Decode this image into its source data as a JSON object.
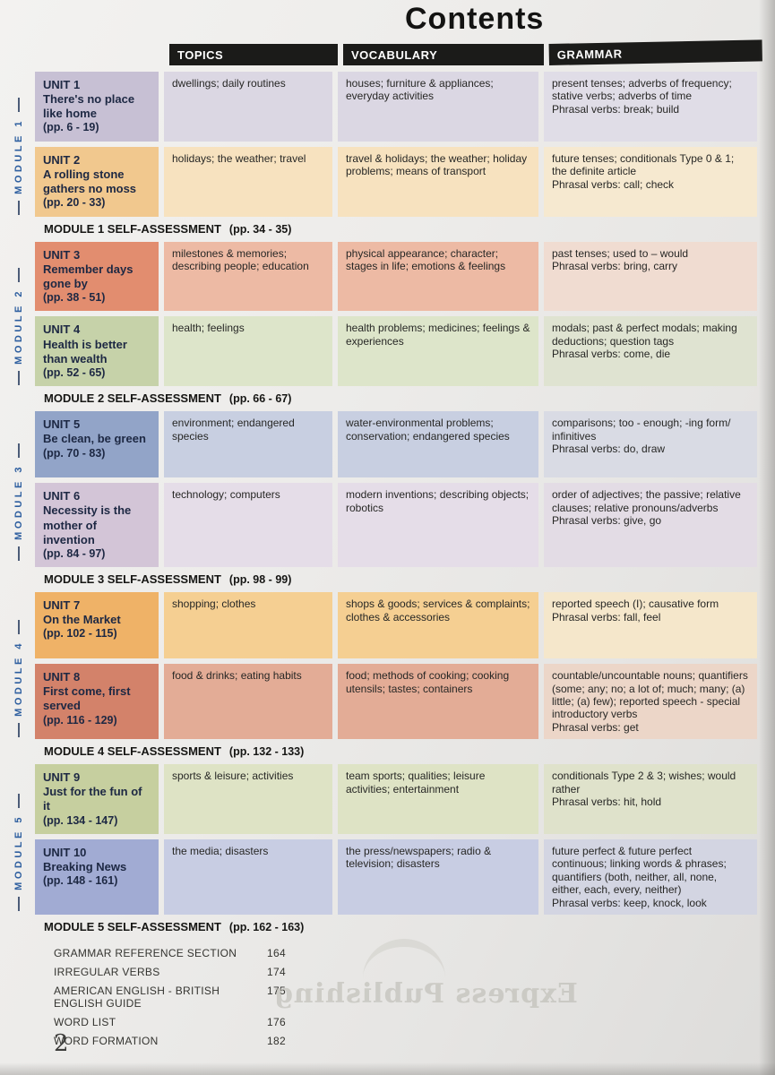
{
  "page": {
    "title": "Contents",
    "page_number": "2",
    "watermark": "Express Publishing"
  },
  "columns": [
    "TOPICS",
    "VOCABULARY",
    "GRAMMAR"
  ],
  "modules": [
    {
      "label": "MODULE 1",
      "self_assessment": "MODULE 1 SELF-ASSESSMENT",
      "self_assessment_pages": "(pp. 34 - 35)",
      "units": [
        {
          "unit": "UNIT 1",
          "title": "There's no place like home",
          "pages": "(pp. 6 - 19)",
          "topics": "dwellings; daily routines",
          "vocabulary": "houses; furniture & appliances; everyday activities",
          "grammar": "present tenses; adverbs of frequency; stative verbs; adverbs of time",
          "phrasal": "Phrasal verbs: break; build",
          "colors": {
            "card": "#c7c0d4",
            "cells": "#dbd7e3",
            "grammar_cell": "#e0dde7"
          }
        },
        {
          "unit": "UNIT 2",
          "title": "A rolling stone gathers no moss",
          "pages": "(pp. 20 - 33)",
          "topics": "holidays; the weather; travel",
          "vocabulary": "travel & holidays; the weather; holiday problems; means of transport",
          "grammar": "future tenses; conditionals Type 0 & 1; the definite article",
          "phrasal": "Phrasal verbs: call; check",
          "colors": {
            "card": "#f1c88e",
            "cells": "#f7e2bf",
            "grammar_cell": "#f6e9d0"
          }
        }
      ]
    },
    {
      "label": "MODULE 2",
      "self_assessment": "MODULE 2 SELF-ASSESSMENT",
      "self_assessment_pages": "(pp. 66 - 67)",
      "units": [
        {
          "unit": "UNIT 3",
          "title": "Remember days gone by",
          "pages": "(pp. 38 - 51)",
          "topics": "milestones & memories; describing people; education",
          "vocabulary": "physical appearance; character; stages in life; emotions & feelings",
          "grammar": "past tenses; used to – would",
          "phrasal": "Phrasal verbs: bring, carry",
          "colors": {
            "card": "#e28d6f",
            "cells": "#edbaa4",
            "grammar_cell": "#f0dcd1"
          }
        },
        {
          "unit": "UNIT 4",
          "title": "Health is better than wealth",
          "pages": "(pp. 52 - 65)",
          "topics": "health; feelings",
          "vocabulary": "health problems; medicines; feelings & experiences",
          "grammar": "modals; past & perfect modals; making deductions; question tags",
          "phrasal": "Phrasal verbs: come, die",
          "colors": {
            "card": "#c6d2a9",
            "cells": "#dde5ca",
            "grammar_cell": "#dfe3d1"
          }
        }
      ]
    },
    {
      "label": "MODULE 3",
      "self_assessment": "MODULE 3 SELF-ASSESSMENT",
      "self_assessment_pages": "(pp. 98 - 99)",
      "units": [
        {
          "unit": "UNIT 5",
          "title": "Be clean, be green",
          "pages": "(pp. 70 - 83)",
          "topics": "environment; endangered species",
          "vocabulary": "water-environmental problems; conservation; endangered species",
          "grammar": "comparisons; too - enough; -ing form/ infinitives",
          "phrasal": "Phrasal verbs: do, draw",
          "colors": {
            "card": "#92a4c8",
            "cells": "#c8cfe1",
            "grammar_cell": "#d9dbe4"
          }
        },
        {
          "unit": "UNIT 6",
          "title": "Necessity is the mother of invention",
          "pages": "(pp. 84 - 97)",
          "topics": "technology; computers",
          "vocabulary": "modern inventions; describing objects; robotics",
          "grammar": "order of adjectives; the passive; relative clauses; relative pronouns/adverbs",
          "phrasal": "Phrasal verbs: give, go",
          "colors": {
            "card": "#d3c5d7",
            "cells": "#e5dde8",
            "grammar_cell": "#e3dce5"
          }
        }
      ]
    },
    {
      "label": "MODULE 4",
      "self_assessment": "MODULE 4 SELF-ASSESSMENT",
      "self_assessment_pages": "(pp. 132 - 133)",
      "units": [
        {
          "unit": "UNIT 7",
          "title": "On the Market",
          "pages": "(pp. 102 - 115)",
          "topics": "shopping; clothes",
          "vocabulary": "shops & goods; services & complaints; clothes & accessories",
          "grammar": "reported speech (I); causative form",
          "phrasal": "Phrasal verbs: fall, feel",
          "colors": {
            "card": "#efb267",
            "cells": "#f5cf92",
            "grammar_cell": "#f5e7cb"
          }
        },
        {
          "unit": "UNIT 8",
          "title": "First come, first served",
          "pages": "(pp. 116 - 129)",
          "topics": "food & drinks; eating habits",
          "vocabulary": "food; methods of cooking; cooking utensils; tastes; containers",
          "grammar": "countable/uncountable nouns; quantifiers (some; any; no; a lot of; much; many; (a) little; (a) few); reported speech - special introductory verbs",
          "phrasal": "Phrasal verbs: get",
          "colors": {
            "card": "#d3826a",
            "cells": "#e3ac96",
            "grammar_cell": "#ecd6c8"
          }
        }
      ]
    },
    {
      "label": "MODULE 5",
      "self_assessment": "MODULE 5 SELF-ASSESSMENT",
      "self_assessment_pages": "(pp. 162 - 163)",
      "units": [
        {
          "unit": "UNIT 9",
          "title": "Just for the fun of it",
          "pages": "(pp. 134 - 147)",
          "topics": "sports & leisure; activities",
          "vocabulary": "team sports; qualities; leisure activities; entertainment",
          "grammar": "conditionals Type 2 & 3; wishes; would rather",
          "phrasal": "Phrasal verbs: hit, hold",
          "colors": {
            "card": "#c6cf9f",
            "cells": "#dee3c5",
            "grammar_cell": "#dfe2cb"
          }
        },
        {
          "unit": "UNIT 10",
          "title": "Breaking News",
          "pages": "(pp. 148 - 161)",
          "topics": "the media; disasters",
          "vocabulary": "the press/newspapers; radio & television; disasters",
          "grammar": "future perfect & future perfect continuous; linking words & phrases; quantifiers (both, neither, all, none, either, each, every, neither)",
          "phrasal": "Phrasal verbs: keep, knock, look",
          "colors": {
            "card": "#a1abd3",
            "cells": "#c8cde3",
            "grammar_cell": "#d3d5e2"
          }
        }
      ]
    }
  ],
  "end_matter": [
    {
      "label": "GRAMMAR REFERENCE SECTION",
      "page": "164"
    },
    {
      "label": "IRREGULAR VERBS",
      "page": "174"
    },
    {
      "label": "AMERICAN ENGLISH - BRITISH ENGLISH GUIDE",
      "page": "175"
    },
    {
      "label": "WORD LIST",
      "page": "176"
    },
    {
      "label": "WORD FORMATION",
      "page": "182"
    }
  ]
}
